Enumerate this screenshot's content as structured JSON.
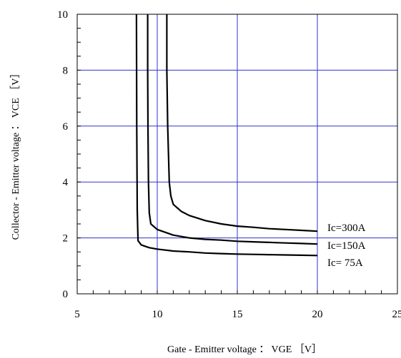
{
  "chart_data": {
    "type": "line",
    "xlabel": "Gate - Emitter voltage ： VGE ［V］",
    "ylabel": "Collector - Emitter voltage ： VCE ［V］",
    "xlim": [
      5,
      25
    ],
    "ylim": [
      0,
      10
    ],
    "xticks": [
      5,
      10,
      15,
      20,
      25
    ],
    "yticks": [
      0,
      2,
      4,
      6,
      8,
      10
    ],
    "x_minor_step": 1,
    "y_minor_step": 0.5,
    "grid": true,
    "gridlines_x": [
      10,
      15,
      20
    ],
    "gridlines_y": [
      2,
      4,
      6,
      8,
      10
    ],
    "grid_color": "#3333cc",
    "line_color": "#000000",
    "series": [
      {
        "name": "Ic=300A",
        "x": [
          10.6,
          10.6,
          10.65,
          10.7,
          10.75,
          10.85,
          11.0,
          11.5,
          12.0,
          13.0,
          14.0,
          15.0,
          16.0,
          17.0,
          18.0,
          19.0,
          20.0
        ],
        "y": [
          10.0,
          8.0,
          6.0,
          5.0,
          4.0,
          3.5,
          3.2,
          2.95,
          2.8,
          2.62,
          2.5,
          2.42,
          2.38,
          2.33,
          2.3,
          2.27,
          2.24
        ]
      },
      {
        "name": "Ic=150A",
        "x": [
          9.4,
          9.4,
          9.42,
          9.45,
          9.5,
          9.6,
          10.0,
          11.0,
          12.0,
          13.0,
          14.0,
          15.0,
          16.0,
          17.0,
          18.0,
          19.0,
          20.0
        ],
        "y": [
          10.0,
          8.0,
          6.0,
          4.0,
          2.9,
          2.5,
          2.3,
          2.1,
          2.0,
          1.95,
          1.92,
          1.88,
          1.86,
          1.84,
          1.82,
          1.8,
          1.78
        ]
      },
      {
        "name": "Ic= 75A",
        "x": [
          8.7,
          8.72,
          8.75,
          8.8,
          9.0,
          9.5,
          10.0,
          11.0,
          12.0,
          13.0,
          14.0,
          15.0,
          16.0,
          17.0,
          18.0,
          19.0,
          20.0
        ],
        "y": [
          10.0,
          6.0,
          3.0,
          1.9,
          1.75,
          1.65,
          1.6,
          1.53,
          1.5,
          1.46,
          1.44,
          1.42,
          1.41,
          1.4,
          1.39,
          1.38,
          1.37
        ]
      }
    ]
  }
}
